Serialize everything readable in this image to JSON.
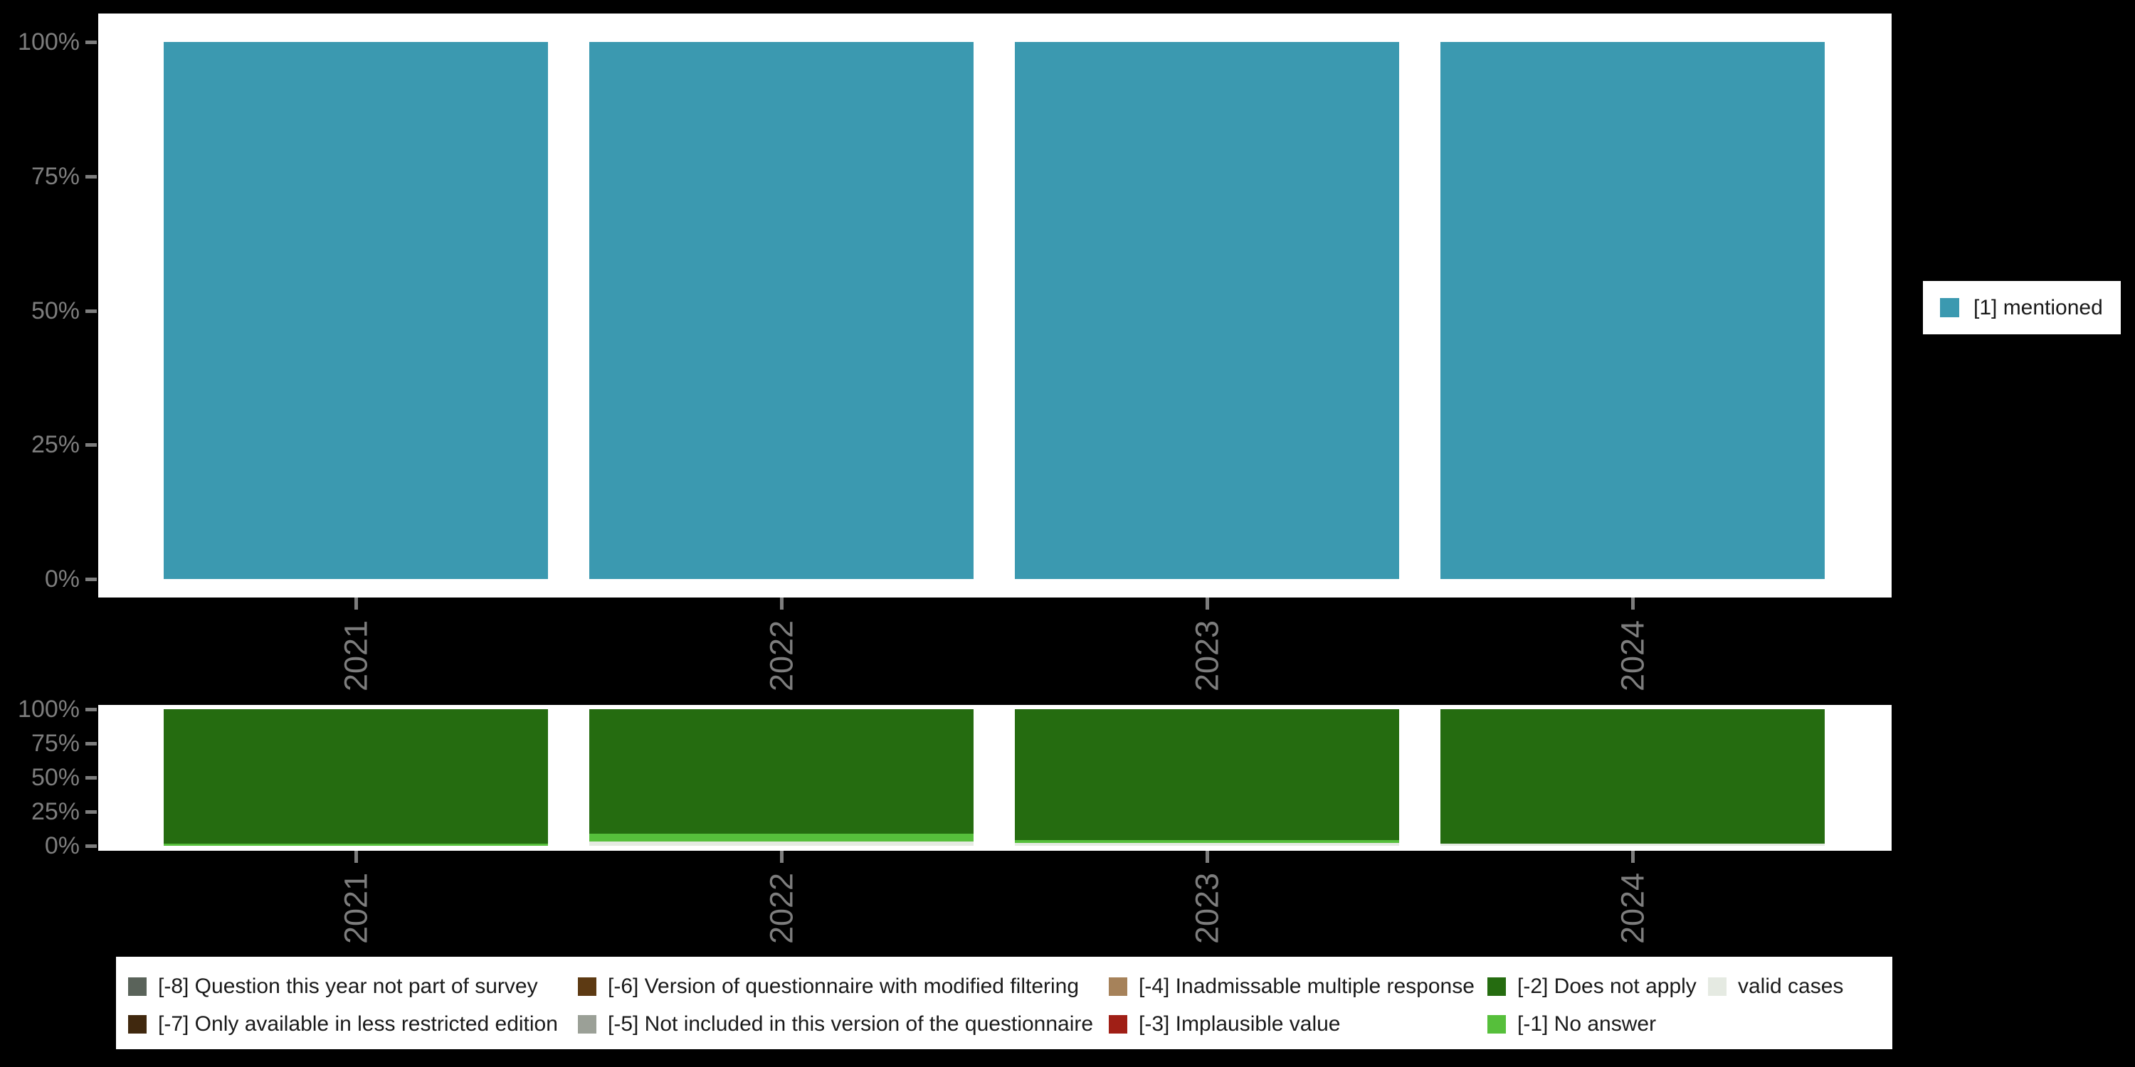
{
  "figure": {
    "background": "#000000",
    "panel_background": "#ffffff",
    "axis_text_color": "#7d7d7d"
  },
  "right_legend": {
    "items": [
      {
        "label": "[1] mentioned",
        "color": "#3b99b0"
      }
    ]
  },
  "bottom_legend": {
    "rows": [
      [
        {
          "label": "[-8] Question this year not part of survey",
          "color": "#5a635a",
          "col": 0
        },
        {
          "label": "[-6] Version of questionnaire with modified filtering",
          "color": "#5d3a13",
          "col": 1
        },
        {
          "label": "[-4] Inadmissable multiple response",
          "color": "#a6825a",
          "col": 2
        },
        {
          "label": "[-2] Does not apply",
          "color": "#256c10",
          "col": 3
        },
        {
          "label": "valid cases",
          "color": "#e5eae2",
          "col": 4
        }
      ],
      [
        {
          "label": "[-7] Only available in less restricted edition",
          "color": "#40280e",
          "col": 0
        },
        {
          "label": "[-5] Not included in this version of the questionnaire",
          "color": "#9ba097",
          "col": 1
        },
        {
          "label": "[-3] Implausible value",
          "color": "#a01f16",
          "col": 2
        },
        {
          "label": "[-1] No answer",
          "color": "#56bf3b",
          "col": 3
        }
      ]
    ]
  },
  "chart_data": [
    {
      "id": "valid-values",
      "type": "bar",
      "stacked": true,
      "unit": "percent",
      "categories": [
        "2021",
        "2022",
        "2023",
        "2024"
      ],
      "y_ticks": [
        "100%",
        "75%",
        "50%",
        "25%",
        "0%"
      ],
      "ylim": [
        0,
        100
      ],
      "grid": false,
      "legend_position": "right",
      "series": [
        {
          "name": "[1] mentioned",
          "color": "#3b99b0",
          "values": [
            100,
            100,
            100,
            100
          ]
        }
      ]
    },
    {
      "id": "missing-values",
      "type": "bar",
      "stacked": true,
      "unit": "percent",
      "categories": [
        "2021",
        "2022",
        "2023",
        "2024"
      ],
      "y_ticks": [
        "100%",
        "75%",
        "50%",
        "25%",
        "0%"
      ],
      "ylim": [
        0,
        100
      ],
      "grid": false,
      "legend_position": "bottom",
      "stack_order": "bottom-to-top",
      "series": [
        {
          "name": "valid cases",
          "color": "#e5eae2",
          "values": [
            0,
            3,
            2,
            1.5
          ]
        },
        {
          "name": "[-1] No answer",
          "color": "#56bf3b",
          "values": [
            1.5,
            6,
            2,
            0
          ]
        },
        {
          "name": "[-2] Does not apply",
          "color": "#256c10",
          "values": [
            98.5,
            91,
            96,
            98.5
          ]
        }
      ]
    }
  ]
}
